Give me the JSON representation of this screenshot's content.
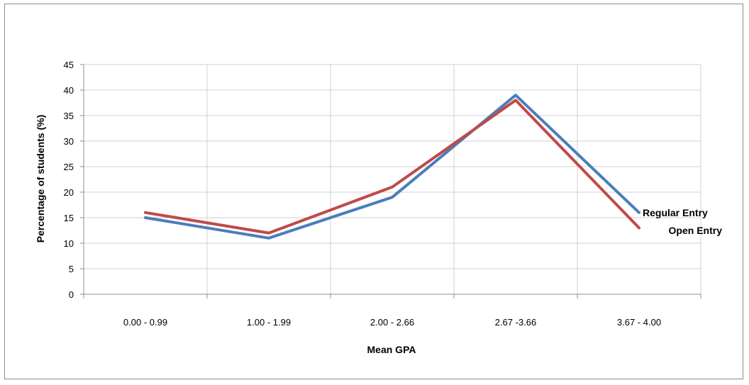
{
  "chart_data": {
    "type": "line",
    "title": "",
    "xlabel": "Mean GPA",
    "ylabel": "Percentage  of students  (%)",
    "categories": [
      "0.00 - 0.99",
      "1.00 - 1.99",
      "2.00 - 2.66",
      "2.67 -3.66",
      "3.67 - 4.00"
    ],
    "ylim": [
      0,
      45
    ],
    "yticks": [
      0,
      5,
      10,
      15,
      20,
      25,
      30,
      35,
      40,
      45
    ],
    "grid": true,
    "legend": "end-of-line labels",
    "series": [
      {
        "name": "Regular Entry",
        "color": "#4a7ebb",
        "values": [
          15,
          11,
          19,
          39,
          16
        ]
      },
      {
        "name": "Open Entry",
        "color": "#be4b48",
        "values": [
          16,
          12,
          21,
          38,
          13
        ]
      }
    ]
  }
}
